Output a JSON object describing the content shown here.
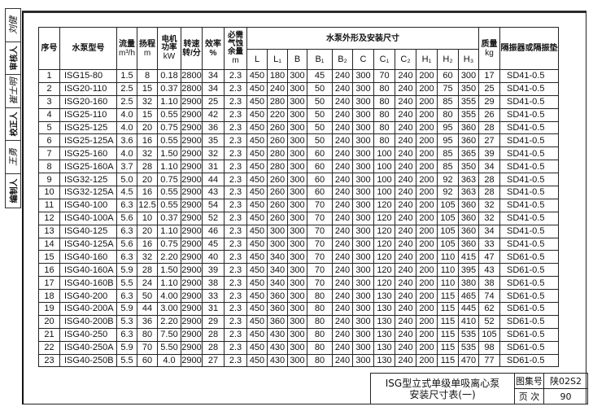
{
  "side_strip": [
    {
      "label": "审核人",
      "signature": "刘健"
    },
    {
      "label": "校正人",
      "signature": "崔士明"
    },
    {
      "label": "编制人",
      "signature": "王勇"
    }
  ],
  "header": {
    "seq": "序号",
    "model": "水泵型号",
    "flow": "流量",
    "flow_unit": "m³/h",
    "head": "扬程",
    "head_unit": "m",
    "power": "电机功率",
    "power_unit": "kW",
    "speed": "转速",
    "speed_unit": "转/分",
    "eff": "效率",
    "eff_unit": "%",
    "npsh": "必需气蚀余量",
    "npsh_unit": "m",
    "dims_group": "水泵外形及安装尺寸",
    "dims": [
      "L",
      "L₁",
      "B",
      "B₁",
      "B₂",
      "C",
      "C₁",
      "C₂",
      "H₁",
      "H₂",
      "H₃"
    ],
    "mass": "质量",
    "mass_unit": "kg",
    "isolator": "隔振器或隔振垫"
  },
  "rows": [
    [
      "1",
      "ISG15-80",
      "1.5",
      "8",
      "0.18",
      "2800",
      "34",
      "2.3",
      "450",
      "180",
      "300",
      "45",
      "240",
      "300",
      "70",
      "240",
      "200",
      "60",
      "300",
      "17",
      "SD41-0.5"
    ],
    [
      "2",
      "ISG20-110",
      "2.5",
      "15",
      "0.37",
      "2800",
      "34",
      "2.3",
      "450",
      "240",
      "300",
      "50",
      "240",
      "300",
      "80",
      "240",
      "200",
      "75",
      "350",
      "25",
      "SD41-0.5"
    ],
    [
      "3",
      "ISG20-160",
      "2.5",
      "32",
      "1.10",
      "2900",
      "25",
      "2.3",
      "450",
      "280",
      "300",
      "50",
      "240",
      "300",
      "80",
      "240",
      "200",
      "85",
      "355",
      "29",
      "SD41-0.5"
    ],
    [
      "4",
      "ISG25-110",
      "4.0",
      "15",
      "0.55",
      "2900",
      "42",
      "2.3",
      "450",
      "220",
      "300",
      "50",
      "240",
      "300",
      "80",
      "240",
      "200",
      "80",
      "355",
      "26",
      "SD41-0.5"
    ],
    [
      "5",
      "ISG25-125",
      "4.0",
      "20",
      "0.75",
      "2900",
      "36",
      "2.3",
      "450",
      "260",
      "300",
      "50",
      "240",
      "300",
      "80",
      "240",
      "200",
      "95",
      "360",
      "28",
      "SD41-0.5"
    ],
    [
      "6",
      "ISG25-125A",
      "3.6",
      "16",
      "0.55",
      "2900",
      "35",
      "2.3",
      "450",
      "260",
      "300",
      "50",
      "240",
      "300",
      "80",
      "240",
      "200",
      "95",
      "360",
      "27",
      "SD41-0.5"
    ],
    [
      "7",
      "ISG25-160",
      "4.0",
      "32",
      "1.50",
      "2900",
      "32",
      "2.3",
      "450",
      "280",
      "300",
      "60",
      "240",
      "300",
      "100",
      "240",
      "200",
      "85",
      "365",
      "39",
      "SD41-0.5"
    ],
    [
      "8",
      "ISG25-160A",
      "3.7",
      "28",
      "1.10",
      "2900",
      "31",
      "2.3",
      "450",
      "280",
      "300",
      "60",
      "240",
      "300",
      "100",
      "240",
      "200",
      "85",
      "350",
      "34",
      "SD41-0.5"
    ],
    [
      "9",
      "ISG32-125",
      "5.0",
      "20",
      "0.75",
      "2900",
      "44",
      "2.3",
      "450",
      "260",
      "300",
      "60",
      "240",
      "300",
      "100",
      "240",
      "200",
      "92",
      "363",
      "28",
      "SD41-0.5"
    ],
    [
      "10",
      "ISG32-125A",
      "4.5",
      "16",
      "0.55",
      "2900",
      "43",
      "2.3",
      "450",
      "260",
      "300",
      "60",
      "240",
      "300",
      "100",
      "240",
      "200",
      "92",
      "363",
      "28",
      "SD41-0.5"
    ],
    [
      "11",
      "ISG40-100",
      "6.3",
      "12.5",
      "0.55",
      "2900",
      "54",
      "2.3",
      "450",
      "260",
      "300",
      "70",
      "240",
      "300",
      "120",
      "240",
      "200",
      "105",
      "360",
      "32",
      "SD41-0.5"
    ],
    [
      "12",
      "ISG40-100A",
      "5.6",
      "10",
      "0.37",
      "2900",
      "52",
      "2.3",
      "450",
      "260",
      "300",
      "70",
      "240",
      "300",
      "120",
      "240",
      "200",
      "105",
      "360",
      "32",
      "SD41-0.5"
    ],
    [
      "13",
      "ISG40-125",
      "6.3",
      "20",
      "1.10",
      "2900",
      "46",
      "2.3",
      "450",
      "300",
      "300",
      "70",
      "240",
      "300",
      "120",
      "240",
      "200",
      "105",
      "360",
      "34",
      "SD41-0.5"
    ],
    [
      "14",
      "ISG40-125A",
      "5.6",
      "16",
      "0.75",
      "2900",
      "45",
      "2.3",
      "450",
      "300",
      "300",
      "70",
      "240",
      "300",
      "120",
      "240",
      "200",
      "105",
      "360",
      "33",
      "SD41-0.5"
    ],
    [
      "15",
      "ISG40-160",
      "6.3",
      "32",
      "2.20",
      "2900",
      "40",
      "2.3",
      "450",
      "340",
      "300",
      "70",
      "240",
      "300",
      "120",
      "240",
      "200",
      "110",
      "415",
      "47",
      "SD61-0.5"
    ],
    [
      "16",
      "ISG40-160A",
      "5.9",
      "28",
      "1.50",
      "2900",
      "39",
      "2.3",
      "450",
      "340",
      "300",
      "70",
      "240",
      "300",
      "120",
      "240",
      "200",
      "110",
      "395",
      "43",
      "SD61-0.5"
    ],
    [
      "17",
      "ISG40-160B",
      "5.5",
      "24",
      "1.10",
      "2900",
      "38",
      "2.3",
      "450",
      "340",
      "300",
      "70",
      "240",
      "300",
      "120",
      "240",
      "200",
      "110",
      "380",
      "38",
      "SD61-0.5"
    ],
    [
      "18",
      "ISG40-200",
      "6.3",
      "50",
      "4.00",
      "2900",
      "33",
      "2.3",
      "450",
      "360",
      "300",
      "80",
      "240",
      "300",
      "130",
      "240",
      "200",
      "115",
      "465",
      "74",
      "SD61-0.5"
    ],
    [
      "19",
      "ISG40-200A",
      "5.9",
      "44",
      "3.00",
      "2900",
      "31",
      "2.3",
      "450",
      "360",
      "300",
      "80",
      "240",
      "300",
      "130",
      "240",
      "200",
      "115",
      "445",
      "62",
      "SD61-0.5"
    ],
    [
      "20",
      "ISG40-200B",
      "5.3",
      "36",
      "2.20",
      "2900",
      "29",
      "2.3",
      "450",
      "360",
      "300",
      "80",
      "240",
      "300",
      "130",
      "240",
      "200",
      "115",
      "410",
      "52",
      "SD61-0.5"
    ],
    [
      "21",
      "ISG40-250",
      "6.3",
      "80",
      "7.50",
      "2900",
      "28",
      "2.3",
      "450",
      "430",
      "300",
      "80",
      "240",
      "300",
      "130",
      "240",
      "200",
      "115",
      "535",
      "105",
      "SD61-0.5"
    ],
    [
      "22",
      "ISG40-250A",
      "5.9",
      "70",
      "5.50",
      "2900",
      "28",
      "2.3",
      "450",
      "430",
      "300",
      "80",
      "240",
      "300",
      "130",
      "240",
      "200",
      "115",
      "535",
      "98",
      "SD61-0.5"
    ],
    [
      "23",
      "ISG40-250B",
      "5.5",
      "60",
      "4.0",
      "2900",
      "27",
      "2.3",
      "450",
      "430",
      "300",
      "80",
      "240",
      "300",
      "130",
      "240",
      "200",
      "115",
      "470",
      "77",
      "SD61-0.5"
    ]
  ],
  "title_block": {
    "title_line1": "ISG型立式单级单吸离心泵",
    "title_line2": "安装尺寸表(一)",
    "atlas_label": "图集号",
    "atlas_value": "陕02S2",
    "page_label": "页 次",
    "page_value": "90"
  }
}
